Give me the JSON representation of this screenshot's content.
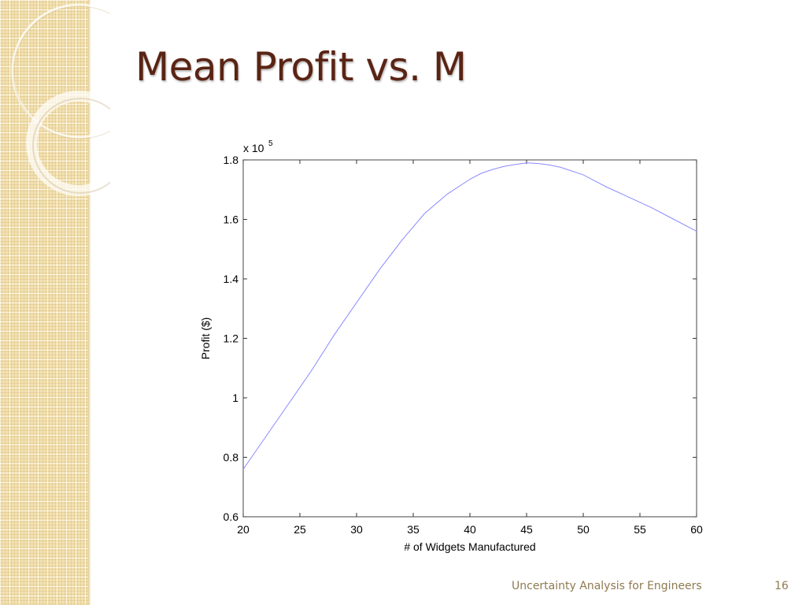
{
  "slide": {
    "title": "Mean Profit vs. M",
    "footer_text": "Uncertainty Analysis for Engineers",
    "page_number": "16"
  },
  "colors": {
    "title": "#5a2414",
    "line": "#8a8aff",
    "sidebar": "#f3e2b3",
    "footer": "#8f7a50"
  },
  "chart_data": {
    "type": "line",
    "xlabel": "# of Widgets Manufactured",
    "ylabel": "Profit ($)",
    "exponent_label": "x 10",
    "exponent_power": "5",
    "xlim": [
      20,
      60
    ],
    "ylim": [
      0.6,
      1.8
    ],
    "x_ticks": [
      20,
      25,
      30,
      35,
      40,
      45,
      50,
      55,
      60
    ],
    "y_ticks": [
      0.6,
      0.8,
      1,
      1.2,
      1.4,
      1.6,
      1.8
    ],
    "x_tick_labels": [
      "20",
      "25",
      "30",
      "35",
      "40",
      "45",
      "50",
      "55",
      "60"
    ],
    "y_tick_labels": [
      "0.6",
      "0.8",
      "1",
      "1.2",
      "1.4",
      "1.6",
      "1.8"
    ],
    "grid": false,
    "series": [
      {
        "x": [
          20,
          22,
          24,
          26,
          28,
          30,
          32,
          34,
          36,
          38,
          40,
          41,
          42,
          43,
          44,
          45,
          46,
          47,
          48,
          50,
          52,
          54,
          56,
          58,
          60
        ],
        "values": [
          0.76,
          0.87,
          0.98,
          1.09,
          1.21,
          1.32,
          1.43,
          1.53,
          1.62,
          1.685,
          1.735,
          1.755,
          1.768,
          1.778,
          1.785,
          1.79,
          1.788,
          1.783,
          1.775,
          1.75,
          1.71,
          1.675,
          1.64,
          1.6,
          1.56
        ]
      }
    ]
  }
}
